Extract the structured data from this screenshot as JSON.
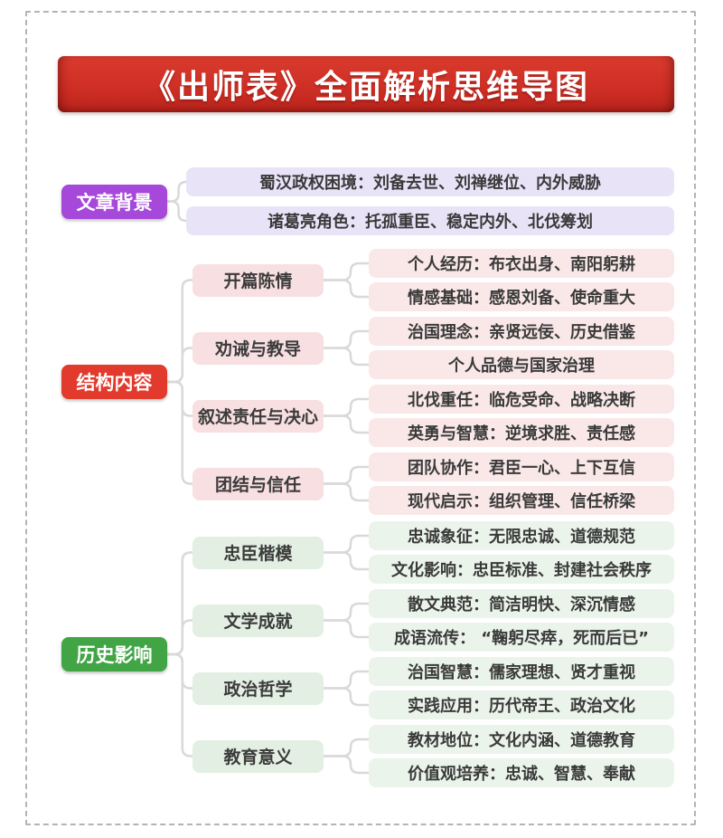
{
  "title": "《出师表》全面解析思维导图",
  "colors": {
    "banner_red": "#cf2f25",
    "branch_purple": "#a648da",
    "branch_red": "#e23a2c",
    "branch_green": "#41a546",
    "leaf_lavender": "#e9e3f8",
    "leaf_pink": "#fae8e8",
    "leaf_green": "#ebf4eb",
    "connector_gray": "#d9d9d9"
  },
  "branches": [
    {
      "label": "文章背景",
      "theme": "purple",
      "leaves": [
        "蜀汉政权困境：刘备去世、刘禅继位、内外威胁",
        "诸葛亮角色：托孤重臣、稳定内外、北伐筹划"
      ]
    },
    {
      "label": "结构内容",
      "theme": "red",
      "subgroups": [
        {
          "label": "开篇陈情",
          "leaves": [
            "个人经历：布衣出身、南阳躬耕",
            "情感基础：感恩刘备、使命重大"
          ]
        },
        {
          "label": "劝诫与教导",
          "leaves": [
            "治国理念：亲贤远佞、历史借鉴",
            "个人品德与国家治理"
          ]
        },
        {
          "label": "叙述责任与决心",
          "leaves": [
            "北伐重任：临危受命、战略决断",
            "英勇与智慧：逆境求胜、责任感"
          ]
        },
        {
          "label": "团结与信任",
          "leaves": [
            "团队协作：君臣一心、上下互信",
            "现代启示：组织管理、信任桥梁"
          ]
        }
      ]
    },
    {
      "label": "历史影响",
      "theme": "green",
      "subgroups": [
        {
          "label": "忠臣楷模",
          "leaves": [
            "忠诚象征：无限忠诚、道德规范",
            "文化影响：忠臣标准、封建社会秩序"
          ]
        },
        {
          "label": "文学成就",
          "leaves": [
            "散文典范：简洁明快、深沉情感",
            "成语流传： “鞠躬尽瘁，死而后已”"
          ]
        },
        {
          "label": "政治哲学",
          "leaves": [
            "治国智慧：儒家理想、贤才重视",
            "实践应用：历代帝王、政治文化"
          ]
        },
        {
          "label": "教育意义",
          "leaves": [
            "教材地位：文化内涵、道德教育",
            "价值观培养：忠诚、智慧、奉献"
          ]
        }
      ]
    }
  ]
}
